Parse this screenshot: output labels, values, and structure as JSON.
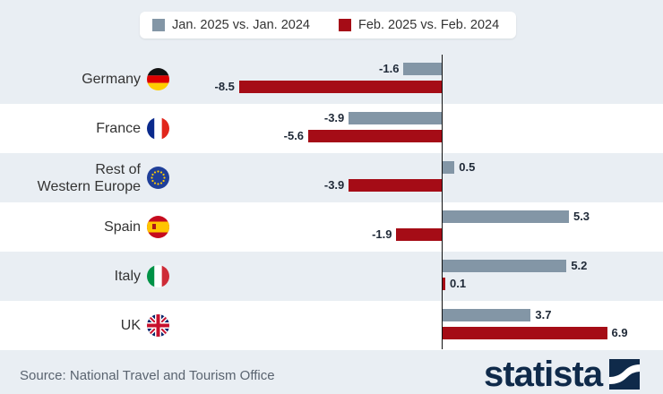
{
  "legend": [
    {
      "label": "Jan. 2025 vs. Jan. 2024",
      "color": "#8396a6"
    },
    {
      "label": "Feb. 2025 vs. Feb. 2024",
      "color": "#a50c16"
    }
  ],
  "chart_data": {
    "type": "bar",
    "orientation": "horizontal",
    "categories": [
      "Germany",
      "France",
      "Rest of Western Europe",
      "Spain",
      "Italy",
      "UK"
    ],
    "series": [
      {
        "name": "Jan. 2025 vs. Jan. 2024",
        "values": [
          -1.6,
          -3.9,
          0.5,
          5.3,
          5.2,
          3.7
        ],
        "color": "#8396a6"
      },
      {
        "name": "Feb. 2025 vs. Feb. 2024",
        "values": [
          -8.5,
          -5.6,
          -3.9,
          -1.9,
          0.1,
          6.9
        ],
        "color": "#a50c16"
      }
    ],
    "category_labels": [
      [
        "Germany"
      ],
      [
        "France"
      ],
      [
        "Rest of",
        "Western Europe"
      ],
      [
        "Spain"
      ],
      [
        "Italy"
      ],
      [
        "UK"
      ]
    ],
    "flag_icons": [
      "germany-flag-icon",
      "france-flag-icon",
      "eu-flag-icon",
      "spain-flag-icon",
      "italy-flag-icon",
      "uk-flag-icon"
    ],
    "xlim": [
      -8.5,
      6.9
    ],
    "grid": false,
    "legend_position": "top-center"
  },
  "footer": {
    "source": "Source: National Travel and Tourism Office",
    "brand": "statista"
  }
}
